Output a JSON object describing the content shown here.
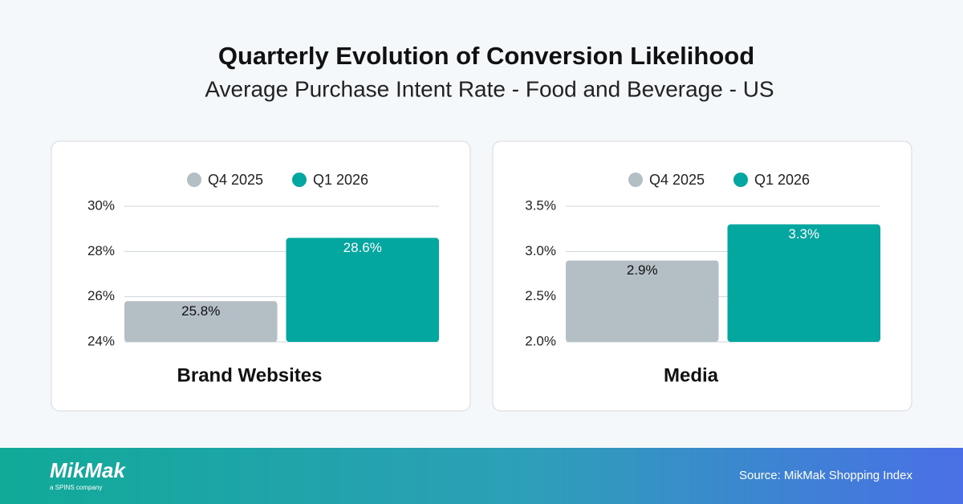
{
  "header": {
    "title": "Quarterly Evolution of Conversion Likelihood",
    "subtitle": "Average Purchase Intent Rate - Food and Beverage - US"
  },
  "chart_data": [
    {
      "type": "bar",
      "categories": [
        "Brand Websites"
      ],
      "series": [
        {
          "name": "Q4 2025",
          "color": "#b3bec5",
          "values": [
            25.8
          ],
          "value_labels": [
            "25.8%"
          ]
        },
        {
          "name": "Q1 2026",
          "color": "#04a6a0",
          "values": [
            28.6
          ],
          "value_labels": [
            "28.6%"
          ]
        }
      ],
      "ylim": [
        24,
        30
      ],
      "yticks": [
        {
          "value": 24,
          "label": "24%"
        },
        {
          "value": 26,
          "label": "26%"
        },
        {
          "value": 28,
          "label": "28%"
        },
        {
          "value": 30,
          "label": "30%"
        }
      ],
      "grid": true
    },
    {
      "type": "bar",
      "categories": [
        "Media"
      ],
      "series": [
        {
          "name": "Q4 2025",
          "color": "#b3bec5",
          "values": [
            2.9
          ],
          "value_labels": [
            "2.9%"
          ]
        },
        {
          "name": "Q1 2026",
          "color": "#04a6a0",
          "values": [
            3.3
          ],
          "value_labels": [
            "3.3%"
          ]
        }
      ],
      "ylim": [
        2.0,
        3.5
      ],
      "yticks": [
        {
          "value": 2.0,
          "label": "2.0%"
        },
        {
          "value": 2.5,
          "label": "2.5%"
        },
        {
          "value": 3.0,
          "label": "3.0%"
        },
        {
          "value": 3.5,
          "label": "3.5%"
        }
      ],
      "grid": true
    }
  ],
  "footer": {
    "brand": "MikMak",
    "tagline": "a SPINS company",
    "source": "Source: MikMak Shopping Index"
  }
}
